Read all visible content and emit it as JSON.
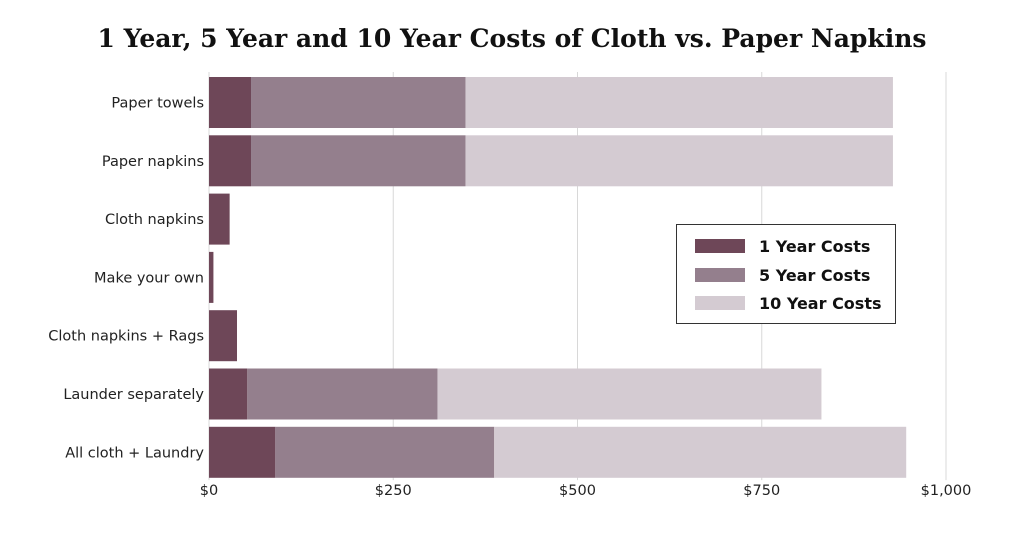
{
  "chart_data": {
    "type": "bar",
    "orientation": "horizontal",
    "stacked": true,
    "title": "1 Year, 5 Year and 10 Year Costs of Cloth vs. Paper Napkins",
    "categories": [
      "Paper towels",
      "Paper napkins",
      "Cloth napkins",
      "Make your own",
      "Cloth napkins + Rags",
      "Launder separately",
      "All cloth + Laundry"
    ],
    "series": [
      {
        "name": "1 Year Costs",
        "color": "#6e4758",
        "values": [
          57,
          57,
          28,
          6,
          38,
          52,
          90
        ]
      },
      {
        "name": "5 Year Costs",
        "color": "#947f8d",
        "values": [
          291,
          291,
          0,
          0,
          0,
          258,
          297
        ]
      },
      {
        "name": "10 Year Costs",
        "color": "#d4cbd2",
        "values": [
          580,
          580,
          0,
          0,
          0,
          521,
          559
        ]
      }
    ],
    "x_ticks": [
      0,
      250,
      500,
      750,
      1000
    ],
    "x_tick_labels": [
      "$0",
      "$250",
      "$500",
      "$750",
      "$1,000"
    ],
    "xlim": [
      0,
      1000
    ],
    "xlabel": "",
    "ylabel": "",
    "grid": "vertical",
    "legend_position": "right-center"
  }
}
